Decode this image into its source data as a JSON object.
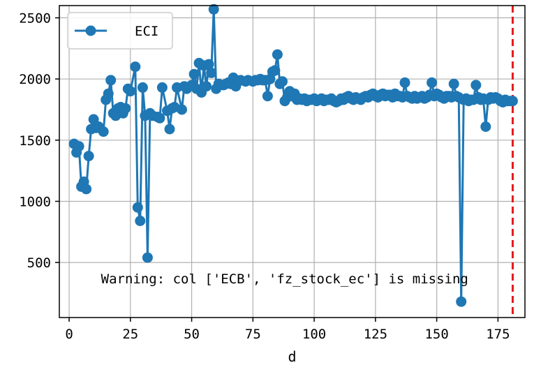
{
  "chart_data": {
    "type": "line",
    "xlabel": "d",
    "ylabel": "",
    "xlim": [
      -4,
      186
    ],
    "ylim": [
      50,
      2600
    ],
    "xticks": [
      0,
      25,
      50,
      75,
      100,
      125,
      150,
      175
    ],
    "yticks": [
      500,
      1000,
      1500,
      2000,
      2500
    ],
    "grid": true,
    "legend_position": "upper-left",
    "vline": {
      "x": 181,
      "color": "#e31a1c",
      "style": "dashed"
    },
    "annotation": {
      "text": "Warning: col ['ECB', 'fz_stock_ec'] is missing",
      "x": 13,
      "y": 330
    },
    "series": [
      {
        "name": "ECI",
        "color": "#1f77b4",
        "marker": "circle",
        "points": [
          [
            2,
            1470
          ],
          [
            3,
            1400
          ],
          [
            4,
            1450
          ],
          [
            5,
            1120
          ],
          [
            6,
            1160
          ],
          [
            7,
            1100
          ],
          [
            8,
            1370
          ],
          [
            9,
            1590
          ],
          [
            10,
            1670
          ],
          [
            11,
            1600
          ],
          [
            12,
            1610
          ],
          [
            14,
            1570
          ],
          [
            15,
            1830
          ],
          [
            16,
            1880
          ],
          [
            17,
            1990
          ],
          [
            18,
            1720
          ],
          [
            19,
            1700
          ],
          [
            20,
            1760
          ],
          [
            21,
            1770
          ],
          [
            22,
            1720
          ],
          [
            23,
            1760
          ],
          [
            24,
            1920
          ],
          [
            25,
            1900
          ],
          [
            27,
            2100
          ],
          [
            28,
            950
          ],
          [
            29,
            840
          ],
          [
            30,
            1930
          ],
          [
            31,
            1700
          ],
          [
            32,
            540
          ],
          [
            33,
            1720
          ],
          [
            34,
            1700
          ],
          [
            36,
            1690
          ],
          [
            37,
            1680
          ],
          [
            38,
            1930
          ],
          [
            40,
            1740
          ],
          [
            41,
            1590
          ],
          [
            42,
            1760
          ],
          [
            43,
            1770
          ],
          [
            44,
            1930
          ],
          [
            46,
            1750
          ],
          [
            47,
            1940
          ],
          [
            48,
            1920
          ],
          [
            50,
            1950
          ],
          [
            51,
            2040
          ],
          [
            52,
            1920
          ],
          [
            53,
            2130
          ],
          [
            54,
            1890
          ],
          [
            55,
            2110
          ],
          [
            56,
            1940
          ],
          [
            57,
            2120
          ],
          [
            58,
            2050
          ],
          [
            59,
            2570
          ],
          [
            60,
            1920
          ],
          [
            61,
            1960
          ],
          [
            63,
            1950
          ],
          [
            64,
            1960
          ],
          [
            65,
            1970
          ],
          [
            66,
            1960
          ],
          [
            67,
            2010
          ],
          [
            68,
            1940
          ],
          [
            69,
            1980
          ],
          [
            70,
            1990
          ],
          [
            72,
            1980
          ],
          [
            73,
            1990
          ],
          [
            75,
            1980
          ],
          [
            76,
            1990
          ],
          [
            77,
            1990
          ],
          [
            78,
            2000
          ],
          [
            79,
            1990
          ],
          [
            80,
            1990
          ],
          [
            81,
            1860
          ],
          [
            82,
            2000
          ],
          [
            83,
            2060
          ],
          [
            84,
            2070
          ],
          [
            85,
            2200
          ],
          [
            86,
            1960
          ],
          [
            87,
            1980
          ],
          [
            88,
            1820
          ],
          [
            89,
            1850
          ],
          [
            90,
            1900
          ],
          [
            91,
            1860
          ],
          [
            92,
            1880
          ],
          [
            93,
            1830
          ],
          [
            94,
            1840
          ],
          [
            95,
            1830
          ],
          [
            96,
            1840
          ],
          [
            97,
            1820
          ],
          [
            98,
            1830
          ],
          [
            99,
            1830
          ],
          [
            100,
            1840
          ],
          [
            101,
            1820
          ],
          [
            102,
            1830
          ],
          [
            103,
            1840
          ],
          [
            104,
            1820
          ],
          [
            105,
            1830
          ],
          [
            106,
            1830
          ],
          [
            107,
            1840
          ],
          [
            108,
            1820
          ],
          [
            109,
            1810
          ],
          [
            110,
            1820
          ],
          [
            111,
            1840
          ],
          [
            112,
            1830
          ],
          [
            113,
            1850
          ],
          [
            114,
            1860
          ],
          [
            115,
            1840
          ],
          [
            116,
            1830
          ],
          [
            117,
            1850
          ],
          [
            118,
            1840
          ],
          [
            119,
            1830
          ],
          [
            120,
            1850
          ],
          [
            121,
            1860
          ],
          [
            122,
            1850
          ],
          [
            123,
            1870
          ],
          [
            124,
            1880
          ],
          [
            125,
            1860
          ],
          [
            126,
            1850
          ],
          [
            127,
            1870
          ],
          [
            128,
            1880
          ],
          [
            129,
            1860
          ],
          [
            130,
            1870
          ],
          [
            131,
            1870
          ],
          [
            132,
            1850
          ],
          [
            133,
            1880
          ],
          [
            134,
            1860
          ],
          [
            135,
            1860
          ],
          [
            136,
            1850
          ],
          [
            137,
            1970
          ],
          [
            138,
            1860
          ],
          [
            139,
            1850
          ],
          [
            140,
            1840
          ],
          [
            141,
            1860
          ],
          [
            142,
            1840
          ],
          [
            143,
            1850
          ],
          [
            144,
            1860
          ],
          [
            145,
            1840
          ],
          [
            146,
            1850
          ],
          [
            147,
            1870
          ],
          [
            148,
            1970
          ],
          [
            149,
            1860
          ],
          [
            150,
            1880
          ],
          [
            151,
            1870
          ],
          [
            152,
            1850
          ],
          [
            153,
            1840
          ],
          [
            154,
            1860
          ],
          [
            155,
            1860
          ],
          [
            156,
            1850
          ],
          [
            157,
            1960
          ],
          [
            158,
            1860
          ],
          [
            159,
            1850
          ],
          [
            160,
            180
          ],
          [
            161,
            1830
          ],
          [
            162,
            1840
          ],
          [
            163,
            1820
          ],
          [
            164,
            1830
          ],
          [
            165,
            1830
          ],
          [
            166,
            1950
          ],
          [
            167,
            1850
          ],
          [
            168,
            1830
          ],
          [
            169,
            1840
          ],
          [
            170,
            1610
          ],
          [
            171,
            1830
          ],
          [
            172,
            1850
          ],
          [
            173,
            1840
          ],
          [
            174,
            1850
          ],
          [
            175,
            1840
          ],
          [
            176,
            1820
          ],
          [
            177,
            1810
          ],
          [
            178,
            1830
          ],
          [
            179,
            1820
          ],
          [
            180,
            1820
          ],
          [
            181,
            1820
          ]
        ]
      }
    ]
  }
}
